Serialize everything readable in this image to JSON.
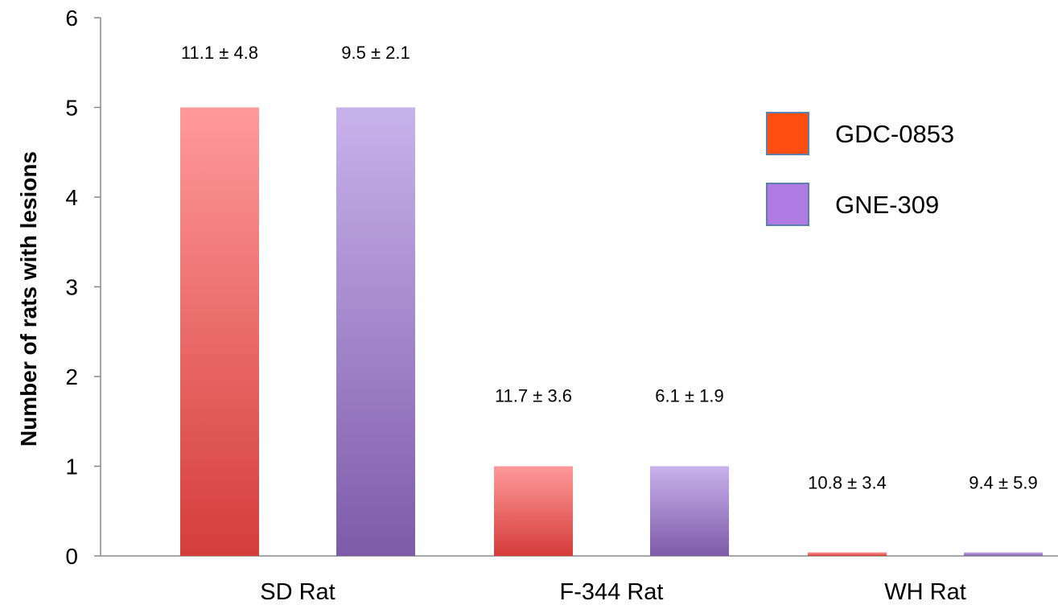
{
  "chart_data": {
    "type": "bar",
    "title": "",
    "xlabel": "",
    "ylabel": "Number of rats with lesions",
    "ylim": [
      0,
      6
    ],
    "yticks": [
      0,
      1,
      2,
      3,
      4,
      5,
      6
    ],
    "grid": false,
    "legend_position": "right",
    "categories": [
      "SD Rat",
      "F-344 Rat",
      "WH Rat"
    ],
    "series": [
      {
        "name": "GDC-0853",
        "color": "#ff4e0d",
        "bar_gradient": [
          "#ff9a9a",
          "#d43d3a"
        ],
        "values": [
          5,
          1,
          0.04
        ],
        "labels": [
          "11.1 ± 4.8",
          "11.7 ± 3.6",
          "10.8 ± 3.4"
        ]
      },
      {
        "name": "GNE-309",
        "color": "#b07ae3",
        "bar_gradient": [
          "#c8b2ec",
          "#7d5ba8"
        ],
        "values": [
          5,
          1,
          0.04
        ],
        "labels": [
          "9.5 ± 2.1",
          "6.1 ± 1.9",
          "9.4 ± 5.9"
        ]
      }
    ]
  }
}
